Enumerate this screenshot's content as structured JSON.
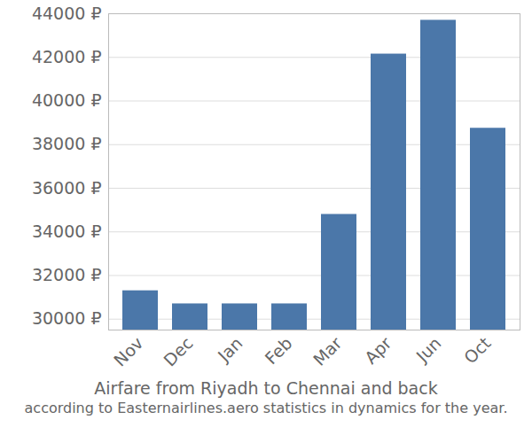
{
  "chart_data": {
    "type": "bar",
    "title": "Airfare from Riyadh to Chennai and back",
    "subtitle": "according to Easternairlines.aero statistics in dynamics for the year.",
    "categories": [
      "Nov",
      "Dec",
      "Jan",
      "Feb",
      "Mar",
      "Apr",
      "Jun",
      "Oct"
    ],
    "values": [
      31300,
      30700,
      30700,
      30700,
      34800,
      42150,
      43700,
      38750
    ],
    "color": "#4b77a9",
    "ylim": [
      29500,
      44000
    ],
    "yticks": [
      {
        "value": 30000,
        "label": "30000 ₽"
      },
      {
        "value": 32000,
        "label": "32000 ₽"
      },
      {
        "value": 34000,
        "label": "34000 ₽"
      },
      {
        "value": 36000,
        "label": "36000 ₽"
      },
      {
        "value": 38000,
        "label": "38000 ₽"
      },
      {
        "value": 40000,
        "label": "40000 ₽"
      },
      {
        "value": 42000,
        "label": "42000 ₽"
      },
      {
        "value": 44000,
        "label": "44000 ₽"
      }
    ],
    "grid": true
  }
}
